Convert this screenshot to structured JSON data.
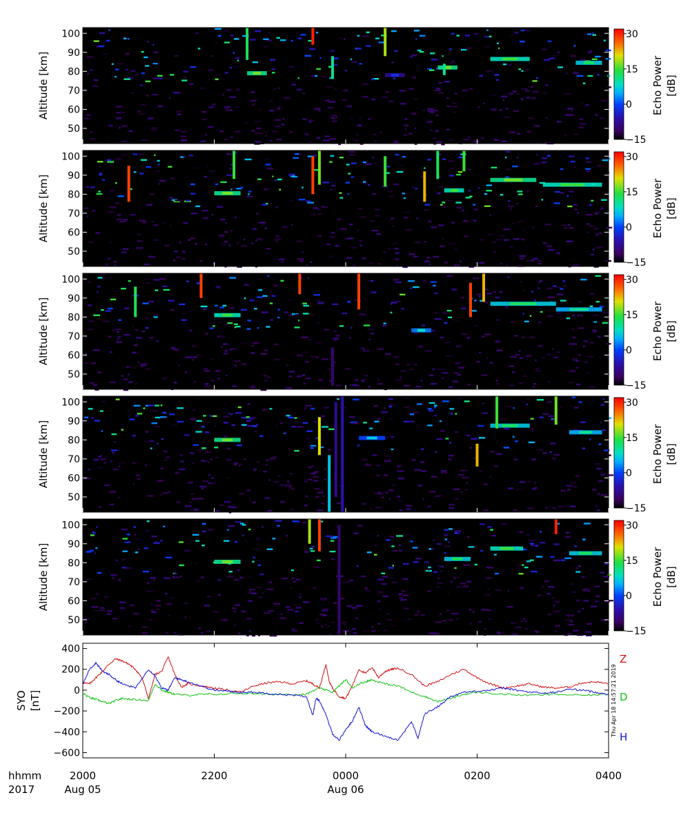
{
  "chart_data": [
    {
      "type": "heatmap",
      "panel": 1,
      "ylabel": "Altitude [km]",
      "yticks": [
        50,
        60,
        70,
        80,
        90,
        100
      ],
      "ylim": [
        42,
        103
      ],
      "colorbar": {
        "label_line1": "Echo Power",
        "label_line2": "[dB]",
        "range": [
          -15,
          32
        ],
        "ticks": [
          30,
          15,
          0,
          -15
        ],
        "tick_labels": [
          "30",
          "15",
          "0",
          "−15"
        ]
      },
      "layers": [
        {
          "alt": 79,
          "t0": 22.5,
          "t1": 22.8,
          "db": 10
        },
        {
          "alt": 86.5,
          "t0": 26.2,
          "t1": 26.8,
          "db": 8
        },
        {
          "alt": 84.5,
          "t0": 27.5,
          "t1": 27.9,
          "db": 6
        },
        {
          "alt": 78,
          "t0": 24.6,
          "t1": 24.9,
          "db": -8
        },
        {
          "alt": 82,
          "t0": 25.4,
          "t1": 25.7,
          "db": 10
        }
      ],
      "columns": [
        {
          "t": 23.5,
          "a0": 94,
          "a1": 103,
          "db": 30
        },
        {
          "t": 24.6,
          "a0": 88,
          "a1": 103,
          "db": 18
        },
        {
          "t": 22.5,
          "a0": 86,
          "a1": 103,
          "db": 12
        },
        {
          "t": 23.8,
          "a0": 76,
          "a1": 88,
          "db": 10
        },
        {
          "t": 25.5,
          "a0": 78,
          "a1": 84,
          "db": 10
        }
      ]
    },
    {
      "type": "heatmap",
      "panel": 2,
      "ylabel": "Altitude [km]",
      "yticks": [
        50,
        60,
        70,
        80,
        90,
        100
      ],
      "ylim": [
        42,
        103
      ],
      "colorbar": {
        "label_line1": "Echo Power",
        "label_line2": "[dB]",
        "range": [
          -15,
          32
        ],
        "ticks": [
          30,
          15,
          0,
          -15
        ],
        "tick_labels": [
          "30",
          "15",
          "0",
          "−15"
        ]
      },
      "layers": [
        {
          "alt": 80.5,
          "t0": 22.0,
          "t1": 22.4,
          "db": 10
        },
        {
          "alt": 87.5,
          "t0": 26.2,
          "t1": 26.9,
          "db": 10
        },
        {
          "alt": 85,
          "t0": 27.0,
          "t1": 27.9,
          "db": 8
        },
        {
          "alt": 82,
          "t0": 25.5,
          "t1": 25.8,
          "db": 8
        }
      ],
      "columns": [
        {
          "t": 20.7,
          "a0": 76,
          "a1": 95,
          "db": 28
        },
        {
          "t": 23.5,
          "a0": 80,
          "a1": 100,
          "db": 28
        },
        {
          "t": 23.6,
          "a0": 85,
          "a1": 103,
          "db": 16
        },
        {
          "t": 22.3,
          "a0": 88,
          "a1": 103,
          "db": 14
        },
        {
          "t": 25.4,
          "a0": 88,
          "a1": 103,
          "db": 12
        },
        {
          "t": 25.8,
          "a0": 92,
          "a1": 103,
          "db": 14
        },
        {
          "t": 24.6,
          "a0": 84,
          "a1": 100,
          "db": 14
        },
        {
          "t": 25.2,
          "a0": 76,
          "a1": 92,
          "db": 22
        }
      ]
    },
    {
      "type": "heatmap",
      "panel": 3,
      "ylabel": "Altitude [km]",
      "yticks": [
        50,
        60,
        70,
        80,
        90,
        100
      ],
      "ylim": [
        42,
        103
      ],
      "colorbar": {
        "label_line1": "Echo Power",
        "label_line2": "[dB]",
        "range": [
          -15,
          32
        ],
        "ticks": [
          30,
          15,
          0,
          -15
        ],
        "tick_labels": [
          "30",
          "15",
          "0",
          "−15"
        ]
      },
      "layers": [
        {
          "alt": 81,
          "t0": 22.0,
          "t1": 22.4,
          "db": 8
        },
        {
          "alt": 87,
          "t0": 26.2,
          "t1": 27.2,
          "db": 6
        },
        {
          "alt": 84,
          "t0": 27.2,
          "t1": 27.9,
          "db": 4
        },
        {
          "alt": 73,
          "t0": 25.0,
          "t1": 25.3,
          "db": 2
        }
      ],
      "columns": [
        {
          "t": 21.8,
          "a0": 90,
          "a1": 103,
          "db": 28
        },
        {
          "t": 23.3,
          "a0": 92,
          "a1": 103,
          "db": 28
        },
        {
          "t": 24.2,
          "a0": 84,
          "a1": 103,
          "db": 28
        },
        {
          "t": 25.9,
          "a0": 80,
          "a1": 98,
          "db": 28
        },
        {
          "t": 26.1,
          "a0": 88,
          "a1": 103,
          "db": 22
        },
        {
          "t": 23.8,
          "a0": 44,
          "a1": 64,
          "db": -10
        },
        {
          "t": 20.8,
          "a0": 80,
          "a1": 96,
          "db": 12
        }
      ]
    },
    {
      "type": "heatmap",
      "panel": 4,
      "ylabel": "Altitude [km]",
      "yticks": [
        50,
        60,
        70,
        80,
        90,
        100
      ],
      "ylim": [
        42,
        103
      ],
      "colorbar": {
        "label_line1": "Echo Power",
        "label_line2": "[dB]",
        "range": [
          -15,
          32
        ],
        "ticks": [
          30,
          15,
          0,
          -15
        ],
        "tick_labels": [
          "30",
          "15",
          "0",
          "−15"
        ]
      },
      "layers": [
        {
          "alt": 80,
          "t0": 22.0,
          "t1": 22.4,
          "db": 10
        },
        {
          "alt": 87.5,
          "t0": 26.2,
          "t1": 26.8,
          "db": 6
        },
        {
          "alt": 84,
          "t0": 27.4,
          "t1": 27.9,
          "db": 4
        },
        {
          "alt": 81,
          "t0": 24.2,
          "t1": 24.6,
          "db": 0
        }
      ],
      "columns": [
        {
          "t": 23.6,
          "a0": 72,
          "a1": 92,
          "db": 20
        },
        {
          "t": 23.75,
          "a0": 42,
          "a1": 72,
          "db": 6
        },
        {
          "t": 23.85,
          "a0": 50,
          "a1": 100,
          "db": -8
        },
        {
          "t": 23.95,
          "a0": 42,
          "a1": 103,
          "db": -6
        },
        {
          "t": 26.3,
          "a0": 86,
          "a1": 103,
          "db": 14
        },
        {
          "t": 27.2,
          "a0": 88,
          "a1": 103,
          "db": 16
        },
        {
          "t": 26.0,
          "a0": 66,
          "a1": 78,
          "db": 22
        }
      ]
    },
    {
      "type": "heatmap",
      "panel": 5,
      "ylabel": "Altitude [km]",
      "yticks": [
        50,
        60,
        70,
        80,
        90,
        100
      ],
      "ylim": [
        42,
        103
      ],
      "colorbar": {
        "label_line1": "Echo Power",
        "label_line2": "[dB]",
        "range": [
          -15,
          32
        ],
        "ticks": [
          30,
          15,
          0,
          -15
        ],
        "tick_labels": [
          "30",
          "15",
          "0",
          "−15"
        ]
      },
      "layers": [
        {
          "alt": 80.5,
          "t0": 22.0,
          "t1": 22.4,
          "db": 10
        },
        {
          "alt": 87.5,
          "t0": 26.2,
          "t1": 26.7,
          "db": 8
        },
        {
          "alt": 85,
          "t0": 27.4,
          "t1": 27.9,
          "db": 6
        },
        {
          "alt": 82,
          "t0": 25.5,
          "t1": 25.9,
          "db": 6
        }
      ],
      "columns": [
        {
          "t": 23.6,
          "a0": 86,
          "a1": 103,
          "db": 28
        },
        {
          "t": 23.45,
          "a0": 90,
          "a1": 103,
          "db": 18
        },
        {
          "t": 27.2,
          "a0": 95,
          "a1": 103,
          "db": 30
        },
        {
          "t": 23.9,
          "a0": 42,
          "a1": 100,
          "db": -10
        }
      ]
    },
    {
      "type": "line",
      "ylabel_line1": "SYO",
      "ylabel_line2": "[nT]",
      "yticks": [
        400,
        200,
        0,
        -200,
        -400,
        -600
      ],
      "tick_labels": [
        "400",
        "200",
        "0",
        "−200",
        "−400",
        "−600"
      ],
      "ylim": [
        -650,
        450
      ],
      "xlim": [
        20,
        28
      ],
      "series": [
        {
          "name": "Z",
          "color": "#d01010",
          "x": [
            20.0,
            20.1,
            20.2,
            20.3,
            20.4,
            20.5,
            20.6,
            20.7,
            20.8,
            20.9,
            21.0,
            21.1,
            21.2,
            21.3,
            21.4,
            21.5,
            21.6,
            21.8,
            22.0,
            22.2,
            22.4,
            22.6,
            22.8,
            23.0,
            23.2,
            23.4,
            23.5,
            23.6,
            23.7,
            23.75,
            23.8,
            23.9,
            24.0,
            24.1,
            24.2,
            24.3,
            24.4,
            24.5,
            24.6,
            24.7,
            24.8,
            25.0,
            25.2,
            25.4,
            25.6,
            25.8,
            26.0,
            26.2,
            26.4,
            26.6,
            26.8,
            27.0,
            27.2,
            27.4,
            27.6,
            27.8,
            28.0
          ],
          "y": [
            70,
            60,
            120,
            180,
            250,
            300,
            280,
            250,
            200,
            120,
            -80,
            150,
            180,
            320,
            150,
            30,
            60,
            40,
            20,
            0,
            -20,
            40,
            70,
            80,
            60,
            90,
            60,
            20,
            250,
            80,
            20,
            -60,
            -80,
            40,
            200,
            160,
            220,
            120,
            180,
            200,
            210,
            150,
            40,
            80,
            150,
            200,
            120,
            60,
            20,
            40,
            60,
            30,
            20,
            30,
            70,
            80,
            60
          ]
        },
        {
          "name": "D",
          "color": "#10c010",
          "x": [
            20.0,
            20.1,
            20.2,
            20.3,
            20.4,
            20.5,
            20.6,
            20.8,
            21.0,
            21.1,
            21.2,
            21.3,
            21.4,
            21.6,
            21.8,
            22.0,
            22.4,
            22.8,
            23.2,
            23.4,
            23.6,
            23.8,
            23.9,
            24.0,
            24.1,
            24.2,
            24.3,
            24.4,
            24.6,
            24.8,
            25.0,
            25.2,
            25.4,
            25.6,
            25.8,
            26.0,
            26.4,
            26.8,
            27.2,
            27.6,
            28.0
          ],
          "y": [
            -30,
            -70,
            -90,
            -110,
            -130,
            -100,
            -80,
            -90,
            -100,
            60,
            0,
            -20,
            -40,
            -50,
            -40,
            -40,
            -30,
            -40,
            -40,
            -40,
            20,
            -20,
            40,
            100,
            20,
            60,
            80,
            100,
            60,
            40,
            -20,
            -60,
            -110,
            -80,
            -40,
            -20,
            -40,
            -50,
            -40,
            -50,
            -40
          ]
        },
        {
          "name": "H",
          "color": "#1010d0",
          "x": [
            20.0,
            20.1,
            20.2,
            20.3,
            20.4,
            20.5,
            20.6,
            20.8,
            21.0,
            21.1,
            21.2,
            21.3,
            21.4,
            21.5,
            21.6,
            21.8,
            22.0,
            22.2,
            22.4,
            22.6,
            22.8,
            23.0,
            23.2,
            23.4,
            23.5,
            23.55,
            23.6,
            23.7,
            23.8,
            23.9,
            24.0,
            24.1,
            24.2,
            24.3,
            24.4,
            24.6,
            24.8,
            25.0,
            25.1,
            25.2,
            25.4,
            25.6,
            25.8,
            26.0,
            26.2,
            26.4,
            26.6,
            26.8,
            27.0,
            27.2,
            27.4,
            27.6,
            27.8,
            28.0
          ],
          "y": [
            60,
            200,
            260,
            180,
            150,
            100,
            60,
            20,
            200,
            140,
            20,
            0,
            120,
            100,
            80,
            40,
            0,
            -10,
            -20,
            -20,
            -30,
            -40,
            -50,
            -60,
            -240,
            -80,
            -100,
            -240,
            -420,
            -480,
            -380,
            -300,
            -160,
            -340,
            -400,
            -440,
            -480,
            -300,
            -460,
            -230,
            -160,
            -60,
            -20,
            -10,
            0,
            20,
            0,
            -20,
            -30,
            -20,
            10,
            0,
            -20,
            -40
          ]
        }
      ]
    }
  ],
  "xaxis": {
    "ticks": [
      20,
      22,
      24,
      26,
      28
    ],
    "tick_labels": [
      "2000",
      "2200",
      "0000",
      "0200",
      "0400"
    ],
    "date_labels": [
      {
        "at": 20,
        "text": "Aug 05"
      },
      {
        "at": 24,
        "text": "Aug 06"
      }
    ],
    "format_label": "hhmm",
    "year_label": "2017"
  },
  "timestamp": "Thu Apr 18 14:57:21 2019",
  "colors": {
    "background": "#000000",
    "axis": "#000000"
  }
}
